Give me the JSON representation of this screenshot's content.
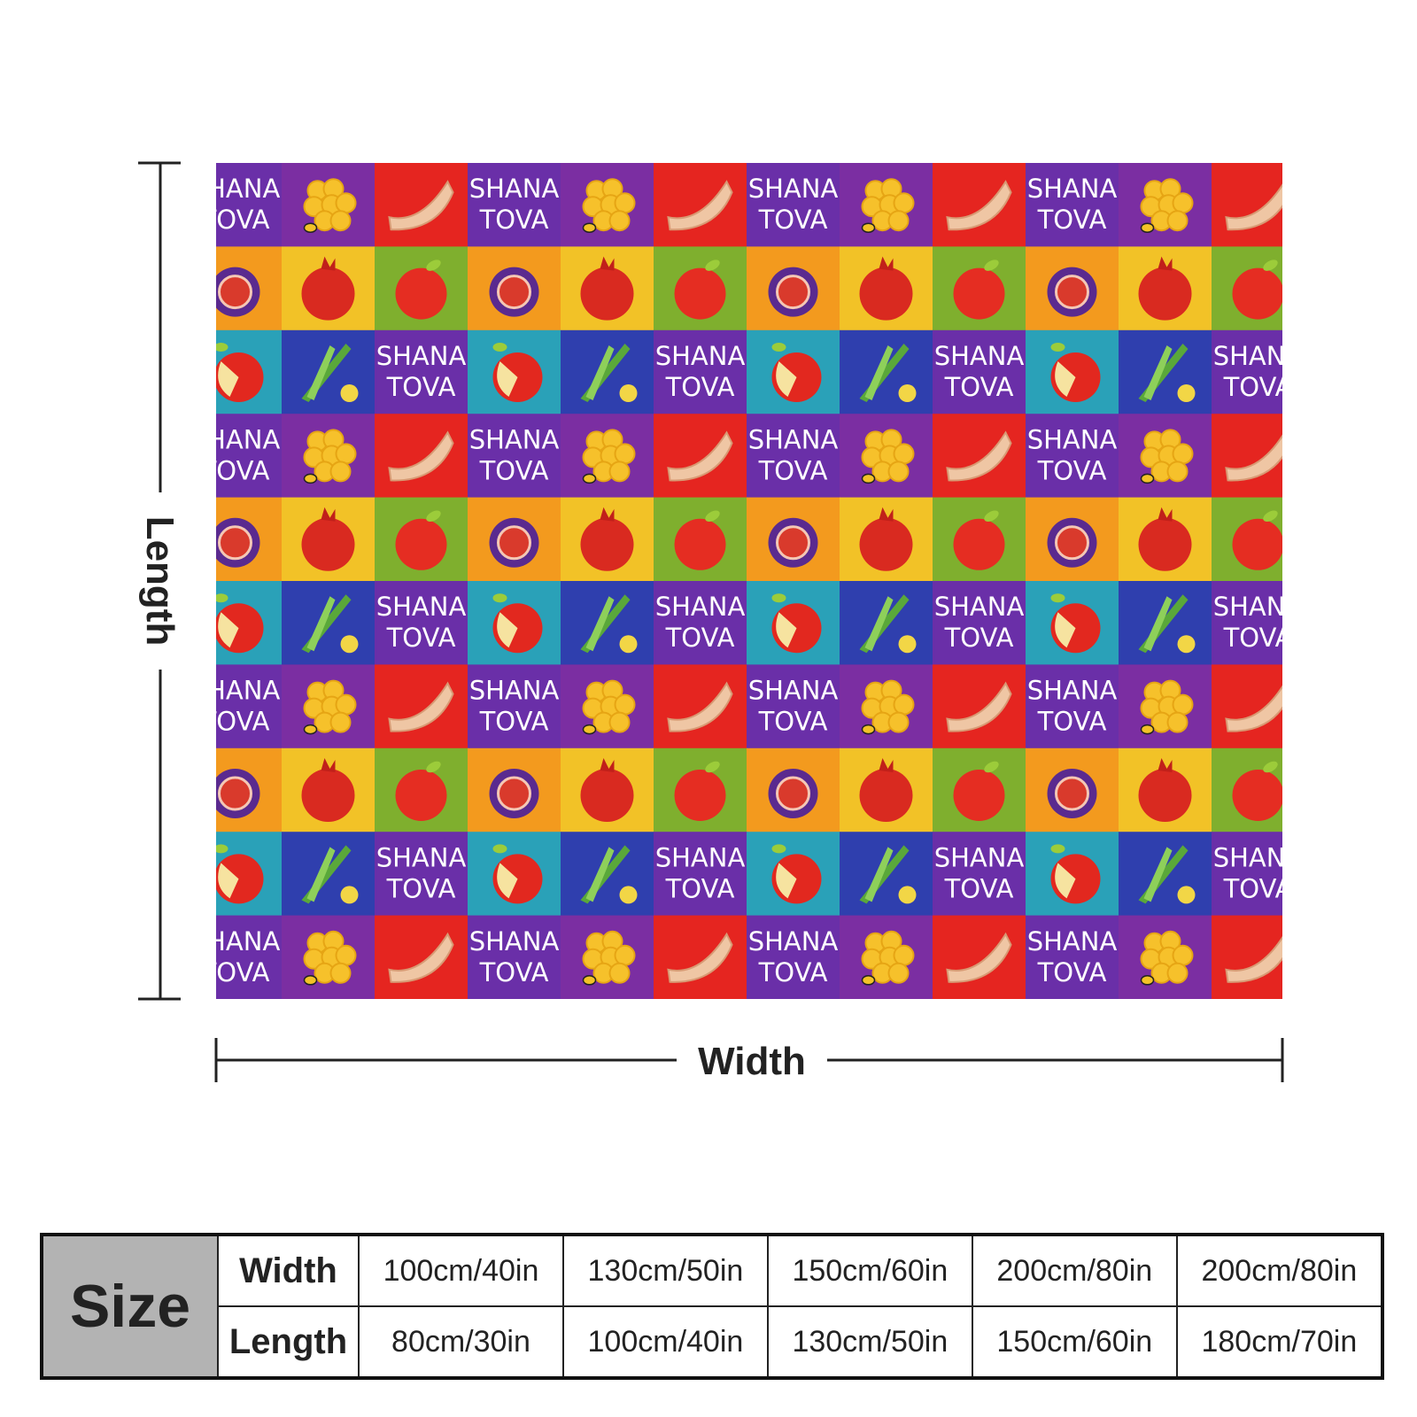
{
  "blanket": {
    "tile_text_line1": "SHANA",
    "tile_text_line2": "TOVA",
    "colors": {
      "purple": "#7b2ea2",
      "red": "#e52520",
      "orange": "#f39a1e",
      "yellow": "#f2c227",
      "green": "#7faf2e",
      "teal": "#2aa1b8",
      "blue": "#2f3fae",
      "violet": "#6a2fa8"
    },
    "row_patterns": [
      [
        "text",
        "honey-icon",
        "shofar-icon"
      ],
      [
        "fig-icon",
        "pomegranate-icon",
        "apple-icon"
      ],
      [
        "apple-slice-icon",
        "leek-icon",
        "text"
      ]
    ]
  },
  "dimensions": {
    "length_label": "Length",
    "width_label": "Width"
  },
  "size_table": {
    "title": "Size",
    "width_label": "Width",
    "length_label": "Length",
    "widths": [
      "100cm/40in",
      "130cm/50in",
      "150cm/60in",
      "200cm/80in",
      "200cm/80in"
    ],
    "lengths": [
      "80cm/30in",
      "100cm/40in",
      "130cm/50in",
      "150cm/60in",
      "180cm/70in"
    ]
  }
}
